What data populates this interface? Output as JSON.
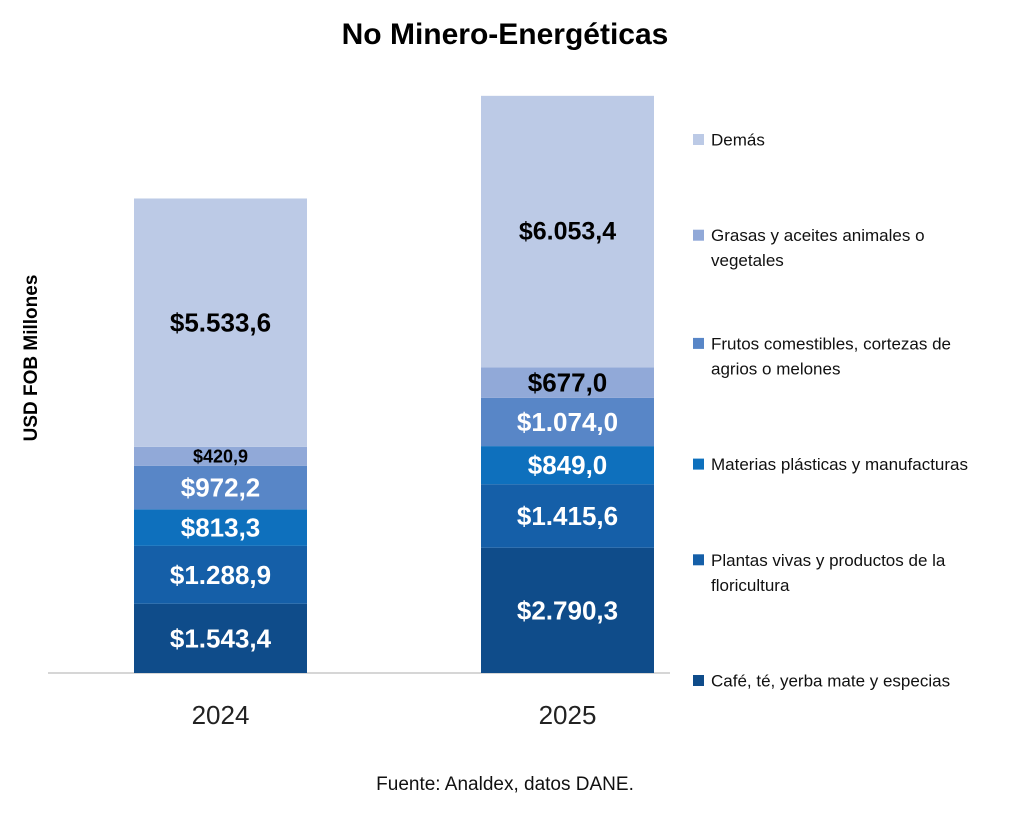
{
  "chart_data": {
    "type": "bar",
    "stacked": true,
    "title": "No Minero-Energéticas",
    "xlabel": "",
    "ylabel": "USD FOB Millones",
    "source": "Fuente: Analdex, datos DANE.",
    "categories": [
      "2024",
      "2025"
    ],
    "ylim": [
      0,
      12900
    ],
    "grid": false,
    "legend_position": "right",
    "series": [
      {
        "name": "Café, té, yerba mate y especias",
        "color": "#0f4c8a",
        "label_color": "#ffffff",
        "values": [
          1543.4,
          2790.3
        ],
        "labels": [
          "$1.543,4",
          "$2.790,3"
        ]
      },
      {
        "name": "Plantas vivas y productos de la floricultura",
        "color": "#155fa8",
        "label_color": "#ffffff",
        "values": [
          1288.9,
          1415.6
        ],
        "labels": [
          "$1.288,9",
          "$1.415,6"
        ]
      },
      {
        "name": "Materias plásticas y manufacturas",
        "color": "#0e70bd",
        "label_color": "#ffffff",
        "values": [
          813.3,
          849.0
        ],
        "labels": [
          "$813,3",
          "$849,0"
        ]
      },
      {
        "name": "Frutos comestibles, cortezas de agrios o melones",
        "color": "#5886c7",
        "label_color": "#ffffff",
        "values": [
          972.2,
          1074.0
        ],
        "labels": [
          "$972,2",
          "$1.074,0"
        ]
      },
      {
        "name": "Grasas y aceites animales o vegetales",
        "color": "#91a9d8",
        "label_color": "#000000",
        "values": [
          420.9,
          677.0
        ],
        "labels": [
          "$420,9",
          "$677,0"
        ]
      },
      {
        "name": "Demás",
        "color": "#bccae6",
        "label_color": "#000000",
        "values": [
          5533.6,
          6053.4
        ],
        "labels": [
          "$5.533,6",
          "$6.053,4"
        ]
      }
    ],
    "legend_lines": [
      [
        "Café, té, yerba mate y especias"
      ],
      [
        "Plantas vivas y productos de la",
        "floricultura"
      ],
      [
        "Materias plásticas y manufacturas"
      ],
      [
        "Frutos comestibles, cortezas de",
        "agrios o melones"
      ],
      [
        "Grasas y aceites animales o",
        "vegetales"
      ],
      [
        "Demás"
      ]
    ]
  }
}
